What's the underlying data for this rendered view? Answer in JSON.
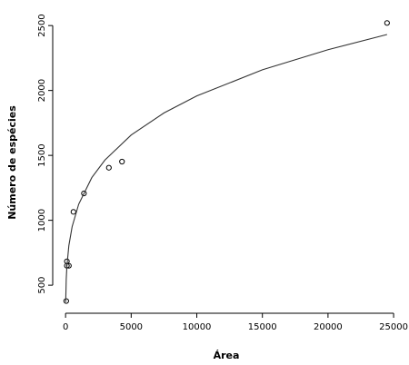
{
  "chart_data": {
    "type": "scatter",
    "x_label": "Área",
    "y_label": "Número de espécies",
    "xlim": [
      -980,
      25480
    ],
    "ylim": [
      284,
      2606
    ],
    "xticks": [
      0,
      5000,
      10000,
      15000,
      20000,
      25000
    ],
    "yticks": [
      500,
      1000,
      1500,
      2000,
      2500
    ],
    "series": [
      {
        "type": "scatter",
        "color": "#000000",
        "x": [
          50,
          100,
          100,
          250,
          600,
          1400,
          3300,
          4300,
          24500
        ],
        "values": [
          378,
          684,
          650,
          650,
          1065,
          1207,
          1405,
          1452,
          2520
        ]
      },
      {
        "type": "line",
        "color": "#333333",
        "x": [
          10,
          50,
          100,
          250,
          500,
          1000,
          2000,
          3000,
          5000,
          7500,
          10000,
          15000,
          20000,
          24500
        ],
        "values": [
          370,
          546,
          645,
          805,
          951,
          1124,
          1329,
          1464,
          1657,
          1827,
          1958,
          2159,
          2314,
          2431
        ]
      }
    ]
  }
}
